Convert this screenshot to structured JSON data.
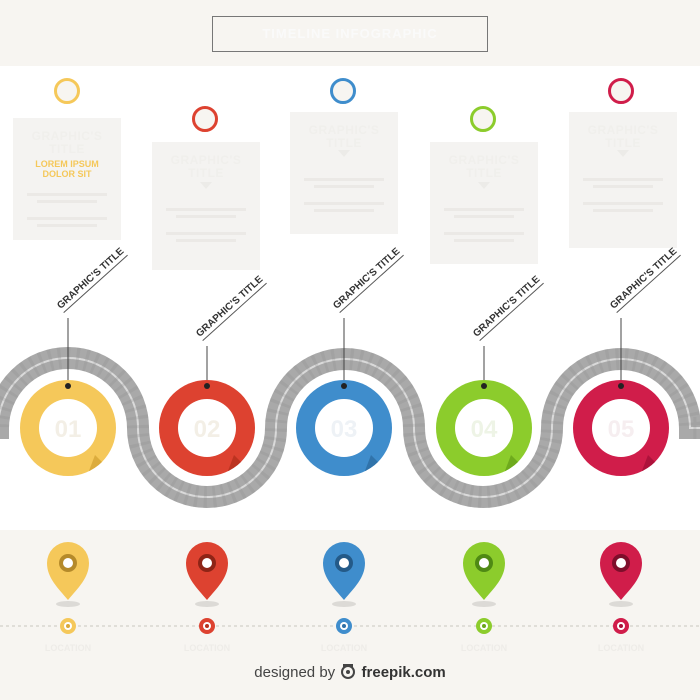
{
  "header": {
    "title": "TIMELINE INFOGRAPHIC"
  },
  "steps": [
    {
      "number": "01",
      "color": "#f5c85a",
      "dark": "#d9a93a",
      "card_title": "GRAPHIC'S TITLE",
      "card_sub": "LOREM IPSUM DOLOR SIT",
      "graphic_label": "GRAPHIC'S TITLE",
      "location": "LOCATION"
    },
    {
      "number": "02",
      "color": "#dd4230",
      "dark": "#b8321f",
      "card_title": "GRAPHIC'S TITLE",
      "card_sub": "",
      "graphic_label": "GRAPHIC'S TITLE",
      "location": "LOCATION"
    },
    {
      "number": "03",
      "color": "#3f8dcc",
      "dark": "#2f70a6",
      "card_title": "GRAPHIC'S TITLE",
      "card_sub": "",
      "graphic_label": "GRAPHIC'S TITLE",
      "location": "LOCATION"
    },
    {
      "number": "04",
      "color": "#8ccc2c",
      "dark": "#6aa61c",
      "card_title": "GRAPHIC'S TITLE",
      "card_sub": "",
      "graphic_label": "GRAPHIC'S TITLE",
      "location": "LOCATION"
    },
    {
      "number": "05",
      "color": "#d01d4a",
      "dark": "#a8123a",
      "card_title": "GRAPHIC'S TITLE",
      "card_sub": "",
      "graphic_label": "GRAPHIC'S TITLE",
      "location": "LOCATION"
    }
  ],
  "footer": {
    "designed_by": "designed by",
    "brand": "freepik.com"
  },
  "colors": {
    "road": "#a7a7a7",
    "road_line": "#dedede",
    "background": "#f7f5f1"
  }
}
